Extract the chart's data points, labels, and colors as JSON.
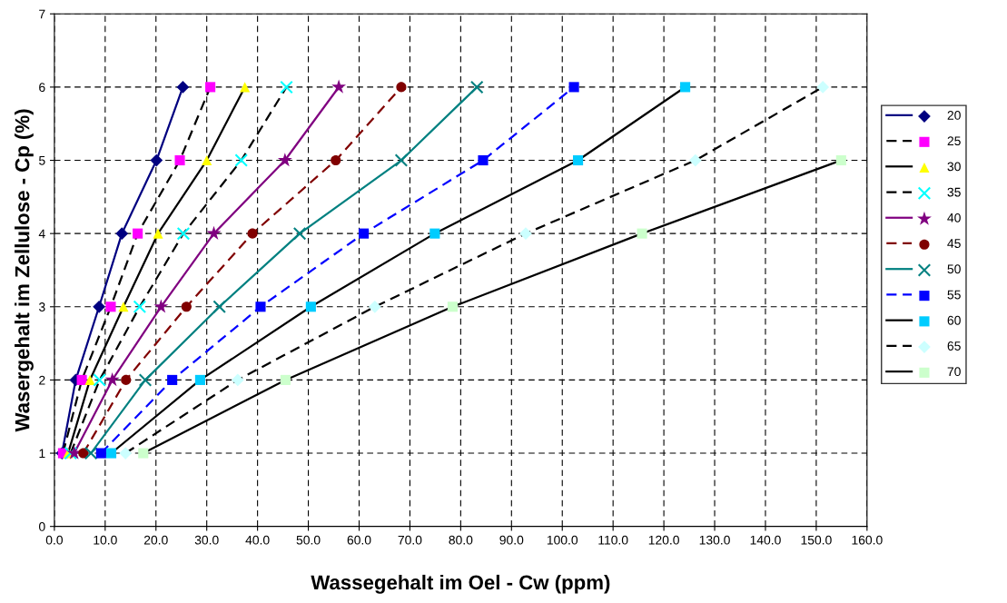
{
  "chart_data": {
    "type": "line",
    "xlabel": "Wassegehalt im Oel - Cw (ppm)",
    "ylabel": "Wasergehalt im Zellulose - Cp (%)",
    "xlim": [
      0,
      160
    ],
    "ylim": [
      0,
      7
    ],
    "xticks": [
      {
        "value": 0,
        "label": "0.0"
      },
      {
        "value": 10,
        "label": "10.0"
      },
      {
        "value": 20,
        "label": "20.0"
      },
      {
        "value": 30,
        "label": "30.0"
      },
      {
        "value": 40,
        "label": "40.0"
      },
      {
        "value": 50,
        "label": "50.0"
      },
      {
        "value": 60,
        "label": "60.0"
      },
      {
        "value": 70,
        "label": "70.0"
      },
      {
        "value": 80,
        "label": "80.0"
      },
      {
        "value": 90,
        "label": "90.0"
      },
      {
        "value": 100,
        "label": "100.0"
      },
      {
        "value": 110,
        "label": "110.0"
      },
      {
        "value": 120,
        "label": "120.0"
      },
      {
        "value": 130,
        "label": "130.0"
      },
      {
        "value": 140,
        "label": "140.0"
      },
      {
        "value": 150,
        "label": "150.0"
      },
      {
        "value": 160,
        "label": "160.0"
      }
    ],
    "yticks": [
      0,
      1,
      2,
      3,
      4,
      5,
      6,
      7
    ],
    "grid": true,
    "legend": "right",
    "series": [
      {
        "name": "20",
        "color": "#000080",
        "marker": "diamond",
        "line_style": "solid",
        "x": [
          1.5,
          4.2,
          8.8,
          13.3,
          20.1,
          25.3
        ],
        "values": [
          1,
          2,
          3,
          4,
          5,
          6
        ]
      },
      {
        "name": "25",
        "color": "#000000",
        "colors": [
          "#ff00ff",
          "#ff00ff",
          "#ff00ff",
          "#ff00ff",
          "#ff00ff",
          "#ff00ff"
        ],
        "marker": "square",
        "line_style": "dashed",
        "x": [
          1.7,
          5.4,
          11.1,
          16.4,
          24.7,
          30.7
        ],
        "values": [
          1,
          2,
          3,
          4,
          5,
          6
        ]
      },
      {
        "name": "30",
        "color": "#000000",
        "colors": [
          "#ffff00",
          "#ffff00",
          "#ffff00",
          "#ffff00",
          "#ffff00",
          "#ffff00"
        ],
        "marker": "triangle",
        "line_style": "solid",
        "x": [
          2.7,
          7.0,
          13.6,
          20.4,
          30.0,
          37.5
        ],
        "values": [
          1,
          2,
          3,
          4,
          5,
          6
        ]
      },
      {
        "name": "35",
        "color": "#000000",
        "colors": [
          "#00ffff",
          "#00ffff",
          "#00ffff",
          "#00ffff",
          "#00ffff",
          "#00ffff"
        ],
        "marker": "cross",
        "line_style": "dashed",
        "x": [
          3.2,
          8.9,
          16.8,
          25.4,
          36.8,
          45.7
        ],
        "values": [
          1,
          2,
          3,
          4,
          5,
          6
        ]
      },
      {
        "name": "40",
        "color": "#800080",
        "marker": "star",
        "line_style": "solid",
        "x": [
          3.9,
          11.4,
          21.0,
          31.4,
          45.4,
          56.0
        ],
        "values": [
          1,
          2,
          3,
          4,
          5,
          6
        ]
      },
      {
        "name": "45",
        "color": "#800000",
        "marker": "circle",
        "line_style": "dashed",
        "x": [
          5.7,
          14.1,
          26.0,
          39.0,
          55.4,
          68.3
        ],
        "values": [
          1,
          2,
          3,
          4,
          5,
          6
        ]
      },
      {
        "name": "50",
        "color": "#008080",
        "marker": "cross",
        "line_style": "solid",
        "x": [
          7.2,
          17.9,
          32.5,
          48.3,
          68.3,
          83.2
        ],
        "values": [
          1,
          2,
          3,
          4,
          5,
          6
        ]
      },
      {
        "name": "55",
        "color": "#0000ff",
        "marker": "square",
        "line_style": "dashed",
        "x": [
          9.2,
          23.2,
          40.6,
          60.9,
          84.4,
          102.3
        ],
        "values": [
          1,
          2,
          3,
          4,
          5,
          6
        ]
      },
      {
        "name": "60",
        "color": "#000000",
        "colors": [
          "#00ccff",
          "#00ccff",
          "#00ccff",
          "#00ccff",
          "#00ccff",
          "#00ccff"
        ],
        "marker": "square",
        "line_style": "solid",
        "x": [
          11.2,
          28.7,
          50.5,
          74.9,
          103.1,
          124.2
        ],
        "values": [
          1,
          2,
          3,
          4,
          5,
          6
        ]
      },
      {
        "name": "65",
        "color": "#000000",
        "colors": [
          "#ccffff",
          "#ccffff",
          "#ccffff",
          "#ccffff",
          "#ccffff",
          "#ccffff"
        ],
        "marker": "diamond",
        "line_style": "dashed",
        "x": [
          14.0,
          36.1,
          63.1,
          92.8,
          126.2,
          151.3
        ],
        "values": [
          1,
          2,
          3,
          4,
          5,
          6
        ]
      },
      {
        "name": "70",
        "color": "#000000",
        "colors": [
          "#ccffcc",
          "#ccffcc",
          "#ccffcc",
          "#ccffcc",
          "#ccffcc"
        ],
        "marker": "square",
        "line_style": "solid",
        "x": [
          17.5,
          45.5,
          78.4,
          115.7,
          154.9
        ],
        "values": [
          1,
          2,
          3,
          4,
          5
        ]
      }
    ]
  }
}
